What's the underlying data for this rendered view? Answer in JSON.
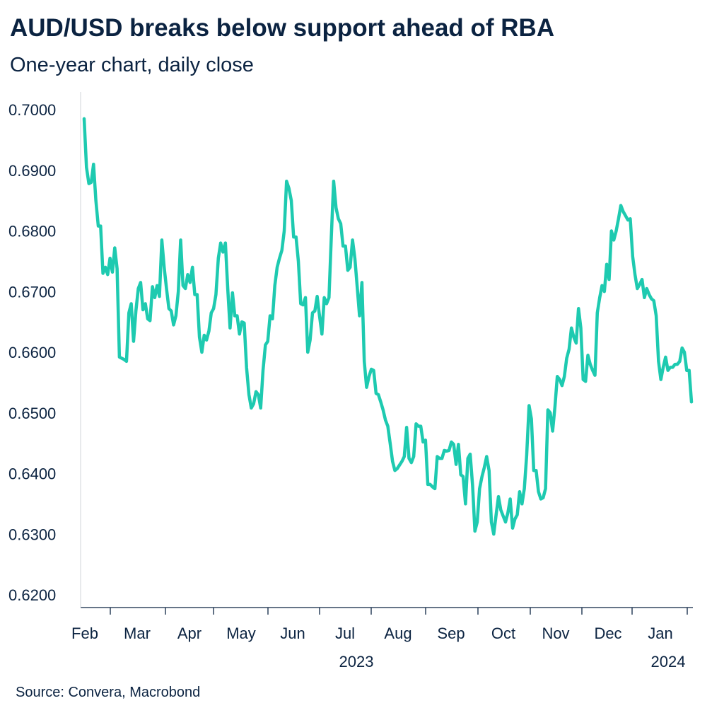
{
  "title": "AUD/USD breaks below support ahead of RBA",
  "subtitle": "One-year chart, daily close",
  "source": "Source: Convera, Macrobond",
  "colors": {
    "line": "#1ecab0",
    "text": "#0b2341",
    "axis": "#0b2341"
  },
  "chart_data": {
    "type": "line",
    "title": "AUD/USD breaks below support ahead of RBA",
    "subtitle": "One-year chart, daily close",
    "xlabel": "",
    "ylabel": "",
    "ylim": [
      0.62,
      0.7
    ],
    "yticks": [
      "0.7000",
      "0.6900",
      "0.6800",
      "0.6700",
      "0.6600",
      "0.6500",
      "0.6400",
      "0.6300",
      "0.6200"
    ],
    "ytick_values": [
      0.7,
      0.69,
      0.68,
      0.67,
      0.66,
      0.65,
      0.64,
      0.63,
      0.62
    ],
    "months": [
      "Feb",
      "Mar",
      "Apr",
      "May",
      "Jun",
      "Jul",
      "Aug",
      "Sep",
      "Oct",
      "Nov",
      "Dec",
      "Jan"
    ],
    "year_labels": [
      "2023",
      "2024"
    ],
    "series": [
      {
        "name": "AUD/USD",
        "values": [
          0.6985,
          0.6905,
          0.6878,
          0.688,
          0.691,
          0.685,
          0.6808,
          0.6808,
          0.673,
          0.674,
          0.6728,
          0.6755,
          0.6732,
          0.6772,
          0.6738,
          0.6592,
          0.659,
          0.6588,
          0.6585,
          0.6665,
          0.668,
          0.6618,
          0.6668,
          0.6705,
          0.6715,
          0.667,
          0.668,
          0.6655,
          0.6652,
          0.6708,
          0.669,
          0.671,
          0.6692,
          0.6785,
          0.674,
          0.6705,
          0.6672,
          0.6668,
          0.6645,
          0.666,
          0.67,
          0.6785,
          0.671,
          0.6705,
          0.6728,
          0.6715,
          0.674,
          0.6695,
          0.6695,
          0.6625,
          0.66,
          0.6628,
          0.662,
          0.6635,
          0.6665,
          0.6672,
          0.6695,
          0.6755,
          0.678,
          0.6765,
          0.678,
          0.6705,
          0.664,
          0.6698,
          0.666,
          0.666,
          0.663,
          0.665,
          0.6648,
          0.6575,
          0.653,
          0.6508,
          0.6515,
          0.6535,
          0.653,
          0.6508,
          0.657,
          0.6612,
          0.6618,
          0.666,
          0.6655,
          0.671,
          0.674,
          0.6755,
          0.6768,
          0.68,
          0.6882,
          0.687,
          0.685,
          0.679,
          0.679,
          0.675,
          0.668,
          0.6678,
          0.669,
          0.66,
          0.662,
          0.6665,
          0.6668,
          0.6692,
          0.666,
          0.663,
          0.669,
          0.668,
          0.669,
          0.679,
          0.6882,
          0.6838,
          0.682,
          0.6812,
          0.6775,
          0.6775,
          0.6735,
          0.674,
          0.6785,
          0.6755,
          0.6708,
          0.666,
          0.6715,
          0.6585,
          0.6542,
          0.656,
          0.6572,
          0.657,
          0.6532,
          0.653,
          0.6518,
          0.6505,
          0.6488,
          0.6478,
          0.645,
          0.642,
          0.6405,
          0.6408,
          0.6414,
          0.642,
          0.6428,
          0.6476,
          0.6425,
          0.6418,
          0.6428,
          0.6482,
          0.6478,
          0.6478,
          0.6452,
          0.6455,
          0.6382,
          0.6382,
          0.6378,
          0.6375,
          0.6428,
          0.6425,
          0.6425,
          0.6438,
          0.6437,
          0.6438,
          0.6452,
          0.6448,
          0.6415,
          0.6448,
          0.6398,
          0.6395,
          0.635,
          0.6425,
          0.6432,
          0.638,
          0.6305,
          0.632,
          0.6375,
          0.6395,
          0.641,
          0.6428,
          0.6405,
          0.632,
          0.63,
          0.6332,
          0.6362,
          0.634,
          0.633,
          0.632,
          0.6335,
          0.6358,
          0.631,
          0.6325,
          0.6332,
          0.637,
          0.635,
          0.6375,
          0.643,
          0.6512,
          0.649,
          0.6405,
          0.6405,
          0.637,
          0.6358,
          0.636,
          0.6375,
          0.6505,
          0.65,
          0.647,
          0.651,
          0.656,
          0.6555,
          0.6545,
          0.656,
          0.659,
          0.6605,
          0.664,
          0.6625,
          0.6615,
          0.6672,
          0.664,
          0.6555,
          0.6552,
          0.6595,
          0.658,
          0.657,
          0.6562,
          0.6665,
          0.669,
          0.671,
          0.67,
          0.6745,
          0.672,
          0.68,
          0.6785,
          0.68,
          0.682,
          0.6842,
          0.6832,
          0.6825,
          0.6818,
          0.682,
          0.6758,
          0.6728,
          0.6705,
          0.6712,
          0.672,
          0.669,
          0.6705,
          0.6695,
          0.6688,
          0.6685,
          0.666,
          0.6585,
          0.6555,
          0.6575,
          0.6592,
          0.657,
          0.6575,
          0.6575,
          0.658,
          0.658,
          0.6585,
          0.6607,
          0.66,
          0.657,
          0.657,
          0.6518
        ]
      }
    ]
  }
}
